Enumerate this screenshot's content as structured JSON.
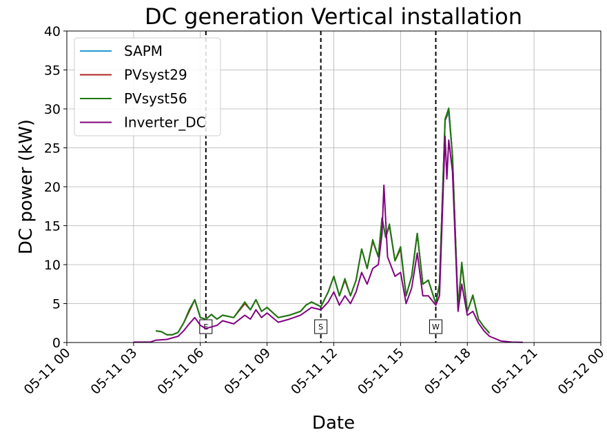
{
  "chart_data": {
    "type": "line",
    "title": "DC generation Vertical installation",
    "xlabel": "Date",
    "ylabel": "DC power (kW)",
    "xlim": [
      "2023-05-11 00:00",
      "2023-05-12 00:00"
    ],
    "ylim": [
      0,
      40
    ],
    "grid": true,
    "legend_position": "top-left",
    "x_tick_labels": [
      "05-11 00",
      "05-11 03",
      "05-11 06",
      "05-11 09",
      "05-11 12",
      "05-11 15",
      "05-11 18",
      "05-11 21",
      "05-12 00"
    ],
    "y_ticks": [
      0,
      5,
      10,
      15,
      20,
      25,
      30,
      35,
      40
    ],
    "vertical_markers": [
      {
        "label": "E",
        "x": "05-11 06:15"
      },
      {
        "label": "S",
        "x": "05-11 11:25"
      },
      {
        "label": "W",
        "x": "05-11 16:35"
      }
    ],
    "series": [
      {
        "name": "SAPM",
        "color": "#1f9bcf",
        "points": [
          [
            "05-11 04:00",
            1.5
          ],
          [
            "05-11 04:15",
            1.4
          ],
          [
            "05-11 04:30",
            1.0
          ],
          [
            "05-11 04:45",
            1.0
          ],
          [
            "05-11 05:00",
            1.3
          ],
          [
            "05-11 05:15",
            2.5
          ],
          [
            "05-11 05:30",
            4.0
          ],
          [
            "05-11 05:45",
            5.5
          ],
          [
            "05-11 06:00",
            3.2
          ],
          [
            "05-11 06:15",
            3.0
          ],
          [
            "05-11 06:30",
            3.6
          ],
          [
            "05-11 06:45",
            3.0
          ],
          [
            "05-11 07:00",
            3.5
          ],
          [
            "05-11 07:30",
            3.2
          ],
          [
            "05-11 08:00",
            5.0
          ],
          [
            "05-11 08:15",
            4.2
          ],
          [
            "05-11 08:30",
            5.5
          ],
          [
            "05-11 08:45",
            4.0
          ],
          [
            "05-11 09:00",
            4.5
          ],
          [
            "05-11 09:30",
            3.2
          ],
          [
            "05-11 10:00",
            3.5
          ],
          [
            "05-11 10:30",
            4.0
          ],
          [
            "05-11 10:45",
            4.8
          ],
          [
            "05-11 11:00",
            5.2
          ],
          [
            "05-11 11:25",
            4.6
          ],
          [
            "05-11 11:45",
            6.5
          ],
          [
            "05-11 12:00",
            8.5
          ],
          [
            "05-11 12:15",
            6.0
          ],
          [
            "05-11 12:30",
            8.0
          ],
          [
            "05-11 12:45",
            6.0
          ],
          [
            "05-11 13:00",
            8.0
          ],
          [
            "05-11 13:15",
            12.0
          ],
          [
            "05-11 13:30",
            9.5
          ],
          [
            "05-11 13:45",
            13.0
          ],
          [
            "05-11 14:00",
            11.0
          ],
          [
            "05-11 14:10",
            16.0
          ],
          [
            "05-11 14:20",
            13.5
          ],
          [
            "05-11 14:30",
            15.0
          ],
          [
            "05-11 14:45",
            10.5
          ],
          [
            "05-11 15:00",
            12.0
          ],
          [
            "05-11 15:15",
            6.0
          ],
          [
            "05-11 15:30",
            8.5
          ],
          [
            "05-11 15:45",
            14.0
          ],
          [
            "05-11 16:00",
            7.5
          ],
          [
            "05-11 16:15",
            8.0
          ],
          [
            "05-11 16:35",
            5.0
          ],
          [
            "05-11 16:45",
            7.5
          ],
          [
            "05-11 17:00",
            28.5
          ],
          [
            "05-11 17:10",
            29.5
          ],
          [
            "05-11 17:20",
            24.0
          ],
          [
            "05-11 17:35",
            4.5
          ],
          [
            "05-11 17:45",
            10.0
          ],
          [
            "05-11 18:00",
            4.0
          ],
          [
            "05-11 18:15",
            6.0
          ],
          [
            "05-11 18:30",
            3.0
          ],
          [
            "05-11 18:45",
            2.0
          ],
          [
            "05-11 19:00",
            1.2
          ]
        ]
      },
      {
        "name": "PVsyst29",
        "color": "#b22222",
        "points": [
          [
            "05-11 04:00",
            1.5
          ],
          [
            "05-11 04:15",
            1.4
          ],
          [
            "05-11 04:30",
            1.0
          ],
          [
            "05-11 04:45",
            1.0
          ],
          [
            "05-11 05:00",
            1.3
          ],
          [
            "05-11 05:15",
            2.5
          ],
          [
            "05-11 05:30",
            4.0
          ],
          [
            "05-11 05:45",
            5.5
          ],
          [
            "05-11 06:00",
            3.2
          ],
          [
            "05-11 06:15",
            3.0
          ],
          [
            "05-11 06:30",
            3.6
          ],
          [
            "05-11 06:45",
            3.0
          ],
          [
            "05-11 07:00",
            3.5
          ],
          [
            "05-11 07:30",
            3.2
          ],
          [
            "05-11 08:00",
            5.0
          ],
          [
            "05-11 08:15",
            4.2
          ],
          [
            "05-11 08:30",
            5.5
          ],
          [
            "05-11 08:45",
            4.0
          ],
          [
            "05-11 09:00",
            4.5
          ],
          [
            "05-11 09:30",
            3.2
          ],
          [
            "05-11 10:00",
            3.5
          ],
          [
            "05-11 10:30",
            4.0
          ],
          [
            "05-11 10:45",
            4.8
          ],
          [
            "05-11 11:00",
            5.2
          ],
          [
            "05-11 11:25",
            4.6
          ],
          [
            "05-11 11:45",
            6.5
          ],
          [
            "05-11 12:00",
            8.5
          ],
          [
            "05-11 12:15",
            6.0
          ],
          [
            "05-11 12:30",
            8.0
          ],
          [
            "05-11 12:45",
            6.0
          ],
          [
            "05-11 13:00",
            8.0
          ],
          [
            "05-11 13:15",
            12.0
          ],
          [
            "05-11 13:30",
            9.5
          ],
          [
            "05-11 13:45",
            13.0
          ],
          [
            "05-11 14:00",
            11.0
          ],
          [
            "05-11 14:10",
            16.0
          ],
          [
            "05-11 14:20",
            13.5
          ],
          [
            "05-11 14:30",
            15.0
          ],
          [
            "05-11 14:45",
            10.5
          ],
          [
            "05-11 15:00",
            12.0
          ],
          [
            "05-11 15:15",
            6.0
          ],
          [
            "05-11 15:30",
            8.5
          ],
          [
            "05-11 15:45",
            14.0
          ],
          [
            "05-11 16:00",
            7.5
          ],
          [
            "05-11 16:15",
            8.0
          ],
          [
            "05-11 16:35",
            5.0
          ],
          [
            "05-11 16:45",
            7.5
          ],
          [
            "05-11 17:00",
            28.5
          ],
          [
            "05-11 17:10",
            30.0
          ],
          [
            "05-11 17:20",
            24.0
          ],
          [
            "05-11 17:35",
            4.5
          ],
          [
            "05-11 17:45",
            10.0
          ],
          [
            "05-11 18:00",
            4.0
          ],
          [
            "05-11 18:15",
            6.0
          ],
          [
            "05-11 18:30",
            3.0
          ],
          [
            "05-11 18:45",
            2.0
          ],
          [
            "05-11 19:00",
            1.2
          ]
        ]
      },
      {
        "name": "PVsyst56",
        "color": "#1a7a0e",
        "points": [
          [
            "05-11 04:00",
            1.5
          ],
          [
            "05-11 04:15",
            1.4
          ],
          [
            "05-11 04:30",
            1.0
          ],
          [
            "05-11 04:45",
            1.0
          ],
          [
            "05-11 05:00",
            1.3
          ],
          [
            "05-11 05:15",
            2.5
          ],
          [
            "05-11 05:30",
            4.2
          ],
          [
            "05-11 05:45",
            5.5
          ],
          [
            "05-11 06:00",
            3.2
          ],
          [
            "05-11 06:15",
            3.0
          ],
          [
            "05-11 06:30",
            3.6
          ],
          [
            "05-11 06:45",
            3.0
          ],
          [
            "05-11 07:00",
            3.5
          ],
          [
            "05-11 07:30",
            3.2
          ],
          [
            "05-11 08:00",
            5.2
          ],
          [
            "05-11 08:15",
            4.2
          ],
          [
            "05-11 08:30",
            5.5
          ],
          [
            "05-11 08:45",
            4.0
          ],
          [
            "05-11 09:00",
            4.5
          ],
          [
            "05-11 09:30",
            3.2
          ],
          [
            "05-11 10:00",
            3.5
          ],
          [
            "05-11 10:30",
            4.0
          ],
          [
            "05-11 10:45",
            4.8
          ],
          [
            "05-11 11:00",
            5.2
          ],
          [
            "05-11 11:25",
            4.6
          ],
          [
            "05-11 11:45",
            6.5
          ],
          [
            "05-11 12:00",
            8.5
          ],
          [
            "05-11 12:15",
            6.0
          ],
          [
            "05-11 12:30",
            8.2
          ],
          [
            "05-11 12:45",
            6.0
          ],
          [
            "05-11 13:00",
            8.0
          ],
          [
            "05-11 13:15",
            12.0
          ],
          [
            "05-11 13:30",
            9.5
          ],
          [
            "05-11 13:45",
            13.2
          ],
          [
            "05-11 14:00",
            11.0
          ],
          [
            "05-11 14:10",
            16.0
          ],
          [
            "05-11 14:20",
            13.5
          ],
          [
            "05-11 14:30",
            15.2
          ],
          [
            "05-11 14:45",
            10.5
          ],
          [
            "05-11 15:00",
            12.3
          ],
          [
            "05-11 15:15",
            6.0
          ],
          [
            "05-11 15:30",
            8.5
          ],
          [
            "05-11 15:45",
            14.0
          ],
          [
            "05-11 16:00",
            7.5
          ],
          [
            "05-11 16:15",
            8.0
          ],
          [
            "05-11 16:35",
            5.0
          ],
          [
            "05-11 16:45",
            7.5
          ],
          [
            "05-11 17:00",
            28.7
          ],
          [
            "05-11 17:10",
            30.1
          ],
          [
            "05-11 17:20",
            24.0
          ],
          [
            "05-11 17:35",
            4.5
          ],
          [
            "05-11 17:45",
            10.3
          ],
          [
            "05-11 18:00",
            4.0
          ],
          [
            "05-11 18:15",
            6.1
          ],
          [
            "05-11 18:30",
            3.0
          ],
          [
            "05-11 18:45",
            2.0
          ],
          [
            "05-11 19:00",
            1.2
          ]
        ]
      },
      {
        "name": "Inverter_DC",
        "color": "#800080",
        "points": [
          [
            "05-11 03:00",
            0.05
          ],
          [
            "05-11 03:30",
            0.05
          ],
          [
            "05-11 03:45",
            0.05
          ],
          [
            "05-11 04:00",
            0.3
          ],
          [
            "05-11 04:30",
            0.4
          ],
          [
            "05-11 05:00",
            0.8
          ],
          [
            "05-11 05:15",
            1.5
          ],
          [
            "05-11 05:30",
            2.4
          ],
          [
            "05-11 05:45",
            3.2
          ],
          [
            "05-11 06:00",
            2.2
          ],
          [
            "05-11 06:15",
            1.8
          ],
          [
            "05-11 06:45",
            2.2
          ],
          [
            "05-11 07:00",
            2.8
          ],
          [
            "05-11 07:30",
            2.4
          ],
          [
            "05-11 08:00",
            3.5
          ],
          [
            "05-11 08:15",
            3.0
          ],
          [
            "05-11 08:30",
            4.2
          ],
          [
            "05-11 08:45",
            3.2
          ],
          [
            "05-11 09:00",
            3.8
          ],
          [
            "05-11 09:30",
            2.6
          ],
          [
            "05-11 10:00",
            3.0
          ],
          [
            "05-11 10:30",
            3.5
          ],
          [
            "05-11 10:45",
            4.0
          ],
          [
            "05-11 11:00",
            4.5
          ],
          [
            "05-11 11:25",
            4.2
          ],
          [
            "05-11 11:45",
            5.2
          ],
          [
            "05-11 12:00",
            6.5
          ],
          [
            "05-11 12:15",
            4.8
          ],
          [
            "05-11 12:30",
            6.0
          ],
          [
            "05-11 12:45",
            5.0
          ],
          [
            "05-11 13:00",
            6.5
          ],
          [
            "05-11 13:15",
            9.0
          ],
          [
            "05-11 13:30",
            7.5
          ],
          [
            "05-11 13:45",
            9.5
          ],
          [
            "05-11 14:00",
            10.0
          ],
          [
            "05-11 14:10",
            14.0
          ],
          [
            "05-11 14:15",
            20.2
          ],
          [
            "05-11 14:25",
            11.0
          ],
          [
            "05-11 14:45",
            8.5
          ],
          [
            "05-11 15:00",
            9.0
          ],
          [
            "05-11 15:15",
            5.0
          ],
          [
            "05-11 15:30",
            7.0
          ],
          [
            "05-11 15:45",
            11.5
          ],
          [
            "05-11 16:00",
            6.0
          ],
          [
            "05-11 16:15",
            6.0
          ],
          [
            "05-11 16:35",
            4.8
          ],
          [
            "05-11 16:45",
            6.0
          ],
          [
            "05-11 17:00",
            26.5
          ],
          [
            "05-11 17:05",
            21.0
          ],
          [
            "05-11 17:10",
            26.0
          ],
          [
            "05-11 17:20",
            22.0
          ],
          [
            "05-11 17:35",
            4.0
          ],
          [
            "05-11 17:45",
            7.5
          ],
          [
            "05-11 18:00",
            3.5
          ],
          [
            "05-11 18:15",
            4.0
          ],
          [
            "05-11 18:30",
            2.5
          ],
          [
            "05-11 18:45",
            1.5
          ],
          [
            "05-11 19:00",
            0.8
          ],
          [
            "05-11 19:30",
            0.2
          ],
          [
            "05-11 20:00",
            0.05
          ],
          [
            "05-11 20:30",
            0.02
          ]
        ]
      }
    ]
  }
}
